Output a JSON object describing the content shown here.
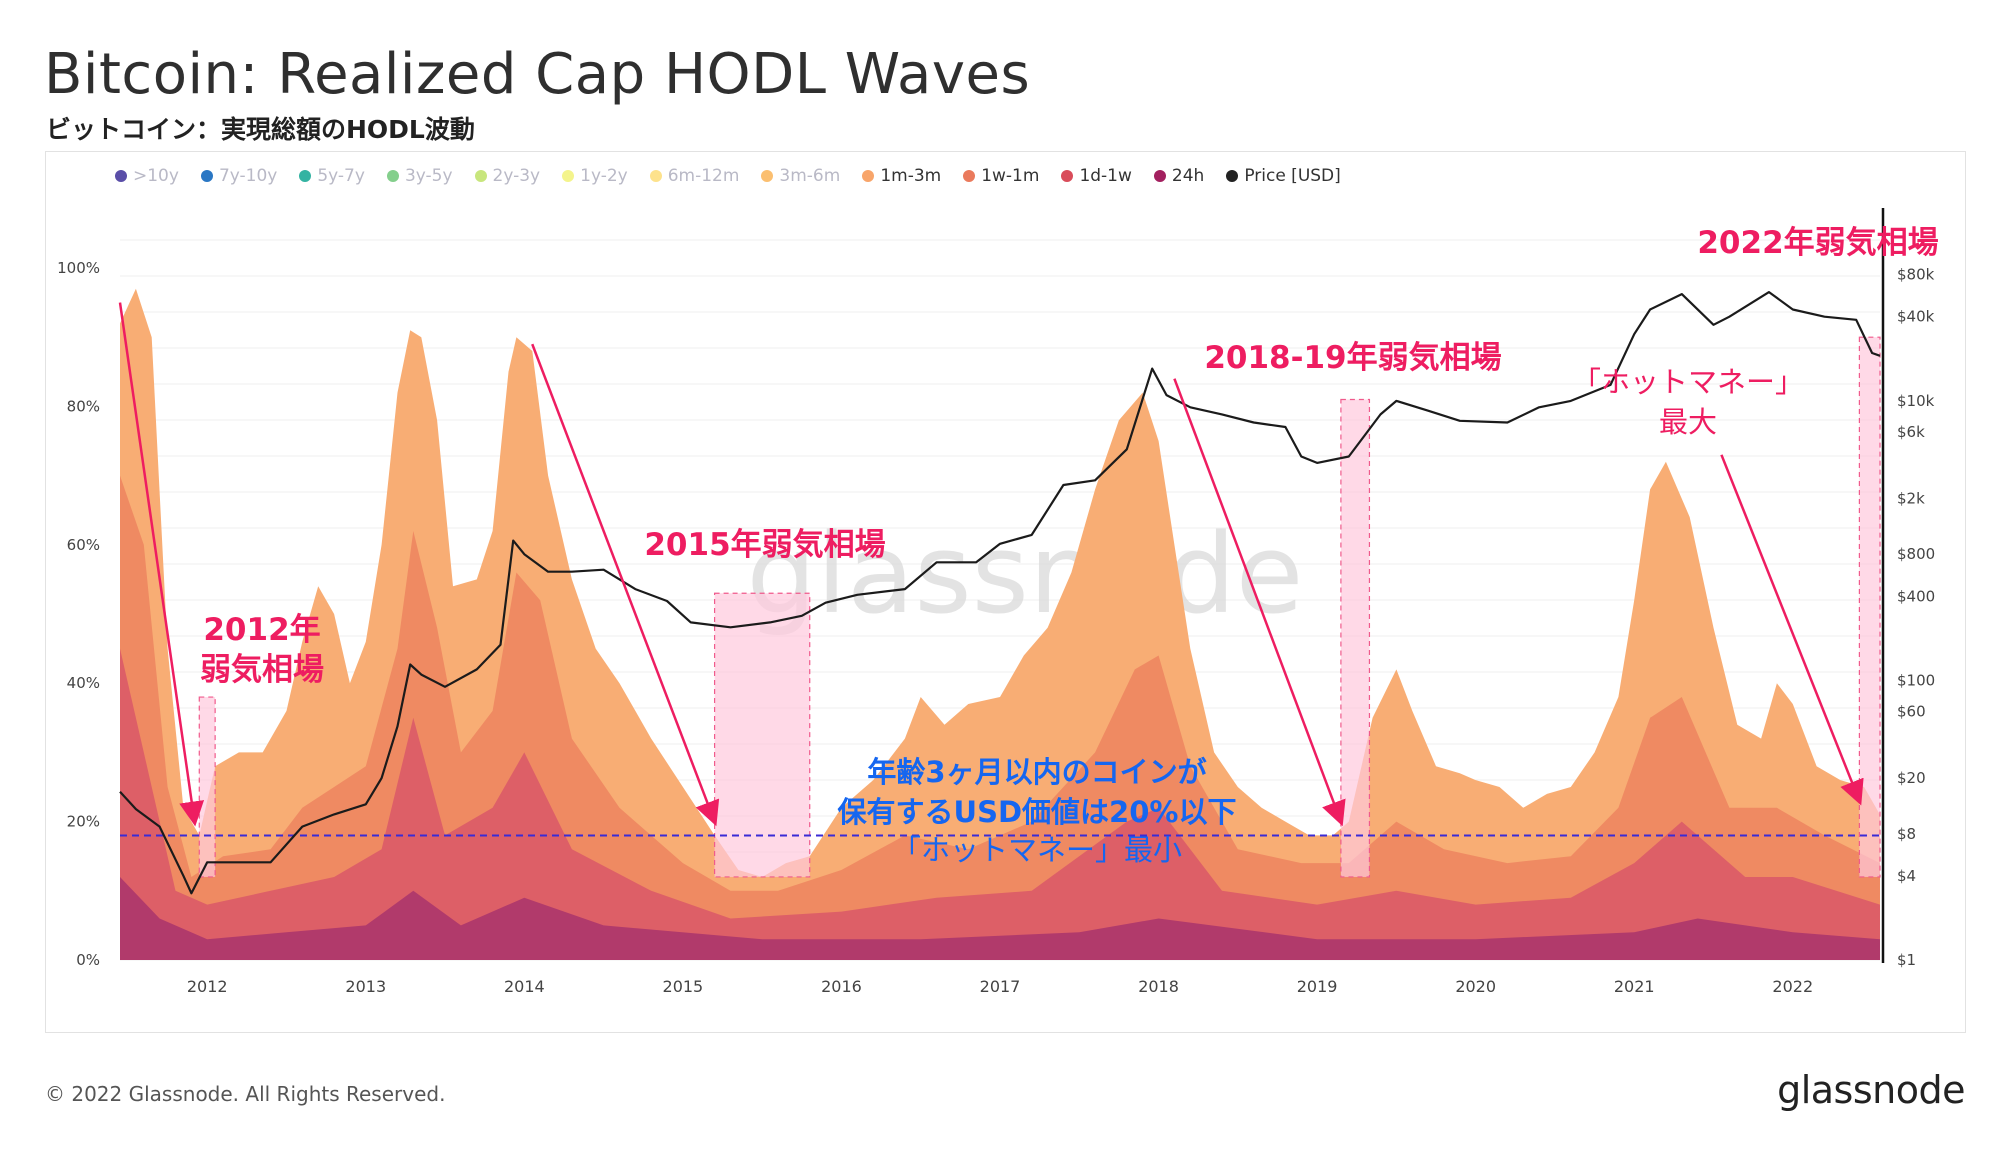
{
  "title": "Bitcoin: Realized Cap HODL Waves",
  "subtitle": "ビットコイン：実現総額のHODL波動",
  "footer": "© 2022 Glassnode. All Rights Reserved.",
  "brand": "glassnode",
  "watermark": "glassnode",
  "legend": [
    {
      "label": ">10y",
      "color": "#5a4ea8",
      "active": false
    },
    {
      "label": "7y-10y",
      "color": "#2a77c4",
      "active": false
    },
    {
      "label": "5y-7y",
      "color": "#34b3a2",
      "active": false
    },
    {
      "label": "3y-5y",
      "color": "#84cf8c",
      "active": false
    },
    {
      "label": "2y-3y",
      "color": "#c8e67d",
      "active": false
    },
    {
      "label": "1y-2y",
      "color": "#f4f48c",
      "active": false
    },
    {
      "label": "6m-12m",
      "color": "#fde28c",
      "active": false
    },
    {
      "label": "3m-6m",
      "color": "#fbbf70",
      "active": false
    },
    {
      "label": "1m-3m",
      "color": "#f8a56a",
      "active": true
    },
    {
      "label": "1w-1m",
      "color": "#ea7a5c",
      "active": true
    },
    {
      "label": "1d-1w",
      "color": "#d94c5a",
      "active": true
    },
    {
      "label": "24h",
      "color": "#a3205f",
      "active": true
    },
    {
      "label": "Price [USD]",
      "color": "#222222",
      "active": true
    }
  ],
  "chart_data": {
    "type": "area",
    "title": "Bitcoin: Realized Cap HODL Waves",
    "x_years": [
      "2012",
      "2013",
      "2014",
      "2015",
      "2016",
      "2017",
      "2018",
      "2019",
      "2020",
      "2021",
      "2022"
    ],
    "x_range": [
      2011.45,
      2022.55
    ],
    "y_left_ticks": [
      "0%",
      "20%",
      "40%",
      "60%",
      "80%",
      "100%"
    ],
    "y_left_range": [
      0,
      100
    ],
    "y_right_ticks": [
      "$1",
      "$4",
      "$8",
      "$20",
      "$60",
      "$100",
      "$400",
      "$800",
      "$2k",
      "$6k",
      "$10k",
      "$40k",
      "$80k"
    ],
    "y_right_values": [
      1,
      4,
      8,
      20,
      60,
      100,
      400,
      800,
      2000,
      6000,
      10000,
      40000,
      80000
    ],
    "y_right_range": [
      1,
      120000
    ],
    "series": [
      {
        "name": "1m-3m (cumulative young supply share)",
        "color": "#f8ad74",
        "x": [
          2011.45,
          2011.55,
          2011.65,
          2011.75,
          2011.85,
          2011.95,
          2012.05,
          2012.2,
          2012.35,
          2012.5,
          2012.6,
          2012.7,
          2012.8,
          2012.9,
          2013.0,
          2013.1,
          2013.2,
          2013.28,
          2013.35,
          2013.45,
          2013.55,
          2013.7,
          2013.8,
          2013.9,
          2013.95,
          2014.05,
          2014.15,
          2014.3,
          2014.45,
          2014.6,
          2014.8,
          2015.0,
          2015.2,
          2015.35,
          2015.5,
          2015.65,
          2015.8,
          2016.0,
          2016.2,
          2016.4,
          2016.5,
          2016.65,
          2016.8,
          2017.0,
          2017.15,
          2017.3,
          2017.45,
          2017.6,
          2017.75,
          2017.9,
          2018.0,
          2018.1,
          2018.2,
          2018.35,
          2018.5,
          2018.65,
          2018.8,
          2018.95,
          2019.1,
          2019.2,
          2019.35,
          2019.5,
          2019.6,
          2019.75,
          2019.9,
          2020.0,
          2020.15,
          2020.3,
          2020.45,
          2020.6,
          2020.75,
          2020.9,
          2021.0,
          2021.1,
          2021.2,
          2021.35,
          2021.5,
          2021.65,
          2021.8,
          2021.9,
          2022.0,
          2022.15,
          2022.3,
          2022.45,
          2022.55
        ],
        "values": [
          92,
          97,
          90,
          45,
          22,
          18,
          28,
          30,
          30,
          36,
          46,
          54,
          50,
          40,
          46,
          60,
          82,
          91,
          90,
          78,
          54,
          55,
          62,
          85,
          90,
          88,
          70,
          55,
          45,
          40,
          32,
          25,
          18,
          13,
          12,
          14,
          15,
          22,
          26,
          32,
          38,
          34,
          37,
          38,
          44,
          48,
          56,
          68,
          78,
          82,
          75,
          60,
          45,
          30,
          25,
          22,
          20,
          18,
          18,
          20,
          35,
          42,
          36,
          28,
          27,
          26,
          25,
          22,
          24,
          25,
          30,
          38,
          52,
          68,
          72,
          64,
          48,
          34,
          32,
          40,
          37,
          28,
          26,
          25,
          21
        ]
      },
      {
        "name": "1w-1m",
        "color": "#ef8a62",
        "x": [
          2011.45,
          2011.6,
          2011.75,
          2011.9,
          2012.1,
          2012.4,
          2012.6,
          2012.8,
          2013.0,
          2013.2,
          2013.3,
          2013.45,
          2013.6,
          2013.8,
          2013.95,
          2014.1,
          2014.3,
          2014.6,
          2015.0,
          2015.3,
          2015.6,
          2016.0,
          2016.4,
          2016.8,
          2017.2,
          2017.6,
          2017.85,
          2018.0,
          2018.2,
          2018.5,
          2018.9,
          2019.2,
          2019.5,
          2019.8,
          2020.2,
          2020.6,
          2020.9,
          2021.1,
          2021.3,
          2021.6,
          2021.9,
          2022.2,
          2022.55
        ],
        "values": [
          70,
          60,
          25,
          12,
          15,
          16,
          22,
          25,
          28,
          45,
          62,
          48,
          30,
          36,
          56,
          52,
          32,
          22,
          14,
          10,
          10,
          13,
          18,
          16,
          20,
          30,
          42,
          44,
          28,
          16,
          14,
          14,
          20,
          16,
          14,
          15,
          22,
          35,
          38,
          22,
          22,
          18,
          14
        ]
      },
      {
        "name": "1d-1w",
        "color": "#dd5f67",
        "x": [
          2011.45,
          2011.6,
          2011.8,
          2012.0,
          2012.4,
          2012.8,
          2013.1,
          2013.3,
          2013.5,
          2013.8,
          2014.0,
          2014.3,
          2014.8,
          2015.3,
          2016.0,
          2016.6,
          2017.2,
          2017.8,
          2018.0,
          2018.4,
          2019.0,
          2019.5,
          2020.0,
          2020.6,
          2021.0,
          2021.3,
          2021.7,
          2022.0,
          2022.55
        ],
        "values": [
          45,
          30,
          10,
          8,
          10,
          12,
          16,
          35,
          18,
          22,
          30,
          16,
          10,
          6,
          7,
          9,
          10,
          20,
          22,
          10,
          8,
          10,
          8,
          9,
          14,
          20,
          12,
          12,
          8
        ]
      },
      {
        "name": "24h",
        "color": "#b13a6b",
        "x": [
          2011.45,
          2011.7,
          2012.0,
          2012.5,
          2013.0,
          2013.3,
          2013.6,
          2014.0,
          2014.5,
          2015.5,
          2016.5,
          2017.5,
          2018.0,
          2019.0,
          2020.0,
          2021.0,
          2021.4,
          2022.0,
          2022.55
        ],
        "values": [
          12,
          6,
          3,
          4,
          5,
          10,
          5,
          9,
          5,
          3,
          3,
          4,
          6,
          3,
          3,
          4,
          6,
          4,
          3
        ]
      }
    ],
    "price_series": {
      "name": "Price [USD]",
      "color": "#222222",
      "x": [
        2011.45,
        2011.55,
        2011.7,
        2011.85,
        2011.9,
        2012.0,
        2012.2,
        2012.4,
        2012.6,
        2012.8,
        2013.0,
        2013.1,
        2013.2,
        2013.28,
        2013.35,
        2013.5,
        2013.7,
        2013.85,
        2013.93,
        2014.0,
        2014.15,
        2014.3,
        2014.5,
        2014.7,
        2014.9,
        2015.05,
        2015.3,
        2015.55,
        2015.75,
        2015.9,
        2016.1,
        2016.4,
        2016.6,
        2016.85,
        2017.0,
        2017.2,
        2017.4,
        2017.6,
        2017.8,
        2017.96,
        2018.05,
        2018.2,
        2018.4,
        2018.6,
        2018.8,
        2018.9,
        2019.0,
        2019.2,
        2019.4,
        2019.5,
        2019.7,
        2019.9,
        2020.2,
        2020.4,
        2020.6,
        2020.85,
        2021.0,
        2021.1,
        2021.3,
        2021.5,
        2021.6,
        2021.85,
        2022.0,
        2022.2,
        2022.4,
        2022.5,
        2022.55
      ],
      "values": [
        16,
        12,
        9,
        4,
        3,
        5,
        5,
        5,
        9,
        11,
        13,
        20,
        47,
        130,
        110,
        90,
        120,
        180,
        1000,
        800,
        600,
        600,
        620,
        450,
        370,
        260,
        240,
        260,
        290,
        360,
        410,
        450,
        700,
        700,
        950,
        1100,
        2500,
        2700,
        4500,
        17000,
        11000,
        9000,
        8000,
        7000,
        6500,
        4000,
        3600,
        4000,
        8000,
        10000,
        8500,
        7200,
        7000,
        9000,
        10000,
        13000,
        30000,
        45000,
        58000,
        35000,
        40000,
        60000,
        45000,
        40000,
        38000,
        22000,
        21000
      ]
    },
    "reference_line": {
      "value": 18,
      "label": "年齢3ヶ月以内のコインが 保有するUSD価値は20%以下 「ホットマネー」最小"
    },
    "annotations": {
      "bear_2012_line1": "2012年",
      "bear_2012_line2": "弱気相場",
      "bear_2015": "2015年弱気相場",
      "bear_2018": "2018-19年弱気相場",
      "bear_2022": "2022年弱気相場",
      "hot_money_max_line1": "「ホットマネー」",
      "hot_money_max_line2": "最大",
      "hot_money_min_line1": "年齢3ヶ月以内のコインが",
      "hot_money_min_line2": "保有するUSD価値は20%以下",
      "hot_money_min_line3": "「ホットマネー」最小"
    },
    "bear_market_periods": [
      {
        "label": "2012年弱気相場",
        "x_start": 2011.95,
        "x_end": 2012.05,
        "y_top": 38
      },
      {
        "label": "2015年弱気相場",
        "x_start": 2015.2,
        "x_end": 2015.8,
        "y_top": 53
      },
      {
        "label": "2018-19年弱気相場",
        "x_start": 2019.15,
        "x_end": 2019.33,
        "y_top": 81
      },
      {
        "label": "2022年弱気相場",
        "x_start": 2022.42,
        "x_end": 2022.55,
        "y_top": 90
      }
    ]
  }
}
